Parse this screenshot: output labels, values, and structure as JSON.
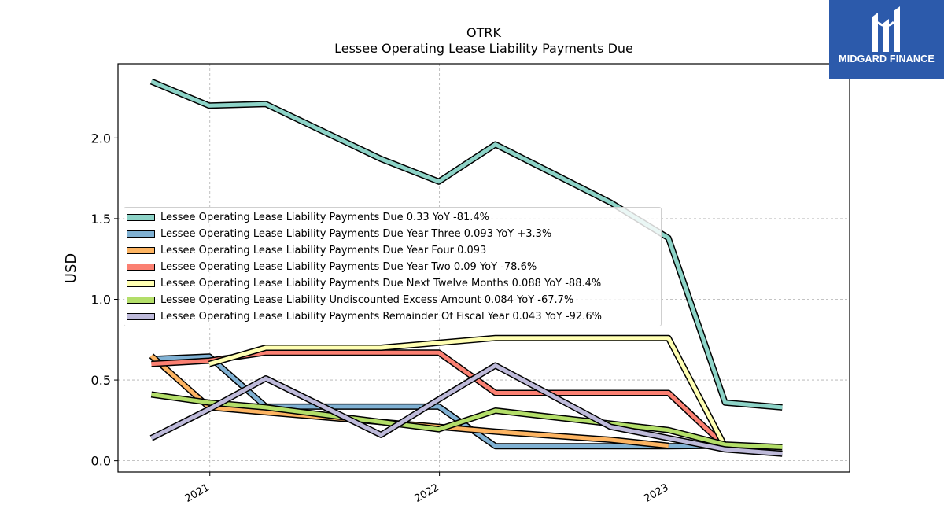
{
  "chart_data": {
    "type": "line",
    "title": "OTRK",
    "subtitle": "Lessee Operating Lease Liability Payments Due",
    "xlabel": "",
    "ylabel": "USD",
    "x_ticks": [
      "2021",
      "2022",
      "2023"
    ],
    "y_ticks": [
      "0.0",
      "0.5",
      "1.0",
      "1.5",
      "2.0"
    ],
    "ylim": [
      -0.07,
      2.46
    ],
    "xlim": [
      "2020-08-08",
      "2023-10-15"
    ],
    "grid": true,
    "legend_position": "center-left",
    "series": [
      {
        "name": "Lessee Operating Lease Liability Payments Due",
        "legend": "Lessee Operating Lease Liability Payments Due  0.33 YoY -81.4%",
        "color": "#8dd3c7",
        "points": [
          [
            "2020-09-30",
            2.35
          ],
          [
            "2020-12-31",
            2.2
          ],
          [
            "2021-03-31",
            2.21
          ],
          [
            "2021-09-30",
            1.87
          ],
          [
            "2021-12-31",
            1.73
          ],
          [
            "2022-03-31",
            1.96
          ],
          [
            "2022-09-30",
            1.6
          ],
          [
            "2022-12-31",
            1.38
          ],
          [
            "2023-03-31",
            0.36
          ],
          [
            "2023-06-30",
            0.33
          ]
        ]
      },
      {
        "name": "Lessee Operating Lease Liability Payments Due Year Three",
        "legend": "Lessee Operating Lease Liability Payments Due Year Three  0.093 YoY +3.3%",
        "color": "#80b1d3",
        "points": [
          [
            "2020-09-30",
            0.63
          ],
          [
            "2020-12-31",
            0.645
          ],
          [
            "2021-03-31",
            0.335
          ],
          [
            "2021-09-30",
            0.335
          ],
          [
            "2021-12-31",
            0.335
          ],
          [
            "2022-03-31",
            0.09
          ],
          [
            "2022-09-30",
            0.09
          ],
          [
            "2022-12-31",
            0.09
          ],
          [
            "2023-03-31",
            0.093
          ]
        ]
      },
      {
        "name": "Lessee Operating Lease Liability Payments Due Year Four",
        "legend": "Lessee Operating Lease Liability Payments Due Year Four  0.093",
        "color": "#fdb462",
        "points": [
          [
            "2020-09-30",
            0.65
          ],
          [
            "2020-12-31",
            0.33
          ],
          [
            "2021-03-31",
            0.3
          ],
          [
            "2021-09-30",
            0.24
          ],
          [
            "2021-12-31",
            0.21
          ],
          [
            "2022-03-31",
            0.18
          ],
          [
            "2022-09-30",
            0.13
          ],
          [
            "2022-12-31",
            0.093
          ]
        ]
      },
      {
        "name": "Lessee Operating Lease Liability Payments Due Year Two",
        "legend": "Lessee Operating Lease Liability Payments Due Year Two  0.09 YoY -78.6%",
        "color": "#fb8072",
        "points": [
          [
            "2020-09-30",
            0.6
          ],
          [
            "2020-12-31",
            0.62
          ],
          [
            "2021-03-31",
            0.67
          ],
          [
            "2021-09-30",
            0.67
          ],
          [
            "2021-12-31",
            0.67
          ],
          [
            "2022-03-31",
            0.42
          ],
          [
            "2022-09-30",
            0.42
          ],
          [
            "2022-12-31",
            0.42
          ],
          [
            "2023-03-31",
            0.09
          ]
        ]
      },
      {
        "name": "Lessee Operating Lease Liability Payments Due Next Twelve Months",
        "legend": "Lessee Operating Lease Liability Payments Due Next Twelve Months  0.088 YoY -88.4%",
        "color": "#ffffb3",
        "points": [
          [
            "2020-12-31",
            0.6
          ],
          [
            "2021-03-31",
            0.7
          ],
          [
            "2021-09-30",
            0.7
          ],
          [
            "2022-03-31",
            0.76
          ],
          [
            "2022-09-30",
            0.76
          ],
          [
            "2022-12-31",
            0.76
          ],
          [
            "2023-03-31",
            0.088
          ]
        ]
      },
      {
        "name": "Lessee Operating Lease Liability Undiscounted Excess Amount",
        "legend": "Lessee Operating Lease Liability Undiscounted Excess Amount  0.084 YoY -67.7%",
        "color": "#b3de69",
        "points": [
          [
            "2020-09-30",
            0.41
          ],
          [
            "2020-12-31",
            0.36
          ],
          [
            "2021-03-31",
            0.33
          ],
          [
            "2021-09-30",
            0.24
          ],
          [
            "2021-12-31",
            0.195
          ],
          [
            "2022-03-31",
            0.31
          ],
          [
            "2022-09-30",
            0.23
          ],
          [
            "2022-12-31",
            0.19
          ],
          [
            "2023-03-31",
            0.1
          ],
          [
            "2023-06-30",
            0.084
          ]
        ]
      },
      {
        "name": "Lessee Operating Lease Liability Payments Remainder Of Fiscal Year",
        "legend": "Lessee Operating Lease Liability Payments Remainder Of Fiscal Year  0.043 YoY -92.6%",
        "color": "#bebada",
        "points": [
          [
            "2020-09-30",
            0.14
          ],
          [
            "2020-12-31",
            0.32
          ],
          [
            "2021-03-31",
            0.51
          ],
          [
            "2021-09-30",
            0.16
          ],
          [
            "2021-12-31",
            0.38
          ],
          [
            "2022-03-31",
            0.59
          ],
          [
            "2022-09-30",
            0.21
          ],
          [
            "2022-12-31",
            0.14
          ],
          [
            "2023-03-31",
            0.07
          ],
          [
            "2023-06-30",
            0.043
          ]
        ]
      }
    ]
  },
  "brand": {
    "name": "MIDGARD FINANCE",
    "color": "#2c5aab",
    "icon": "midgard-logo-icon"
  }
}
